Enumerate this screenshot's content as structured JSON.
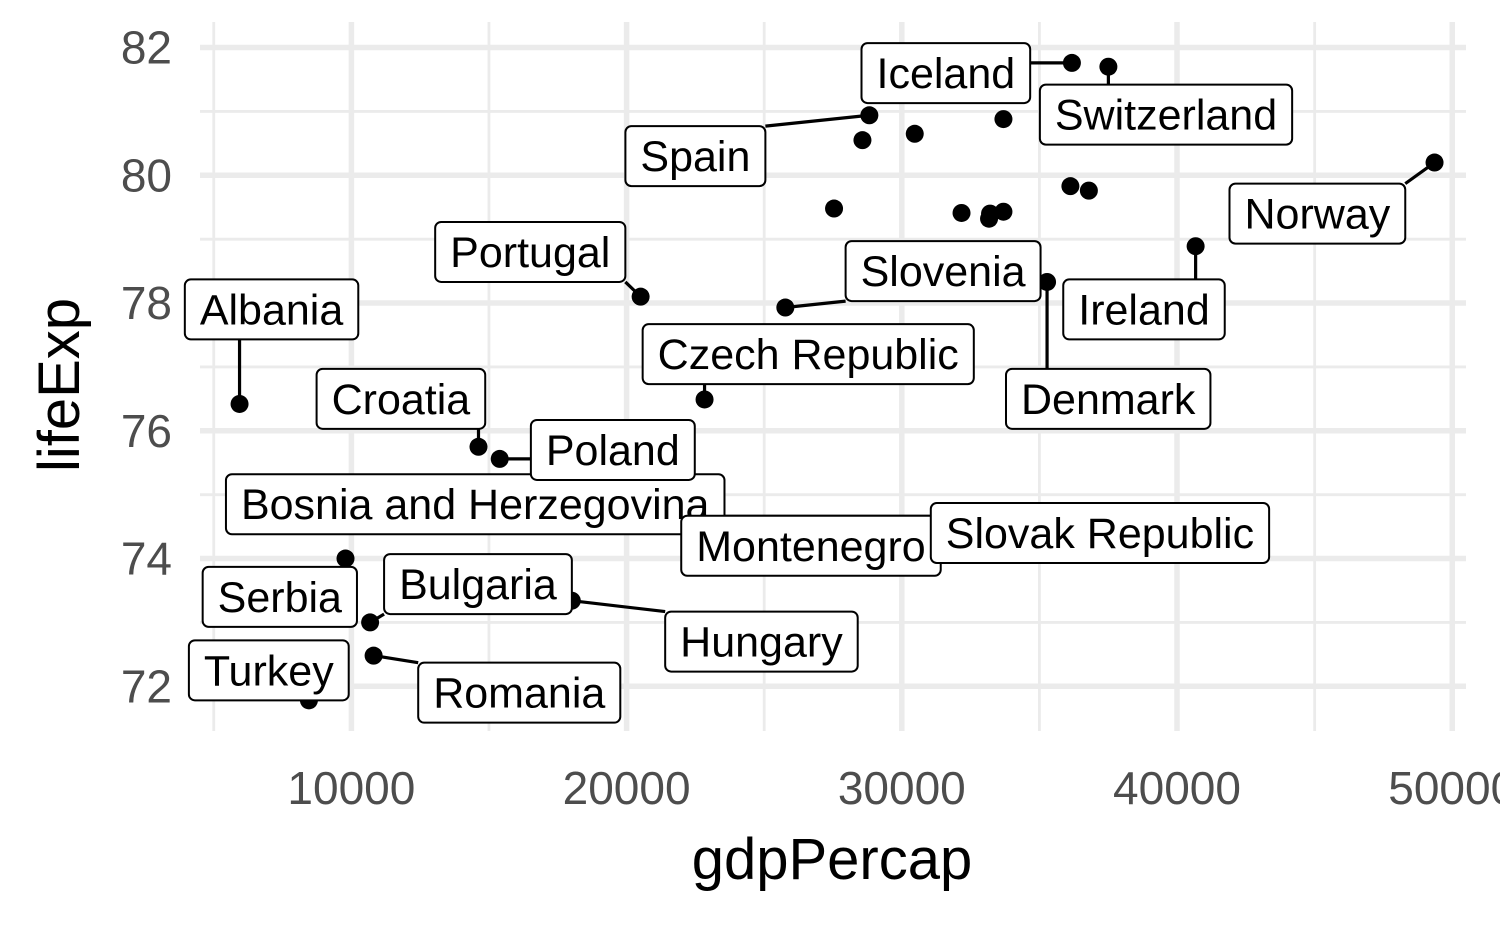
{
  "chart_data": {
    "type": "scatter",
    "xlabel": "gdpPercap",
    "ylabel": "lifeExp",
    "xlim": [
      4500,
      50500
    ],
    "ylim": [
      71.3,
      82.4
    ],
    "x_ticks": [
      10000,
      20000,
      30000,
      40000,
      50000
    ],
    "x_tick_labels": [
      "10000",
      "20000",
      "30000",
      "40000",
      "50000"
    ],
    "y_ticks": [
      72,
      74,
      76,
      78,
      80,
      82
    ],
    "y_tick_labels": [
      "72",
      "74",
      "76",
      "78",
      "80",
      "82"
    ],
    "grid": true,
    "legend": false,
    "colors": {
      "point": "#000000",
      "grid": "#ebebeb",
      "tick_text": "#4d4d4d"
    },
    "points": [
      {
        "label": "Albania",
        "x": 5937,
        "y": 76.42,
        "tag": {
          "x": 7100,
          "y": 77.9
        }
      },
      {
        "label": "Bosnia and Herzegovina",
        "x": 7446,
        "y": 74.85,
        "tag": {
          "x": 14500,
          "y": 74.85
        }
      },
      {
        "label": "Bulgaria",
        "x": 10681,
        "y": 73.0,
        "tag": {
          "x": 14600,
          "y": 73.6
        }
      },
      {
        "label": "Croatia",
        "x": 14619,
        "y": 75.75,
        "tag": {
          "x": 11800,
          "y": 76.5
        }
      },
      {
        "label": "Czech Republic",
        "x": 22833,
        "y": 76.49,
        "tag": {
          "x": 26600,
          "y": 77.2
        }
      },
      {
        "label": "Denmark",
        "x": 35278,
        "y": 78.33,
        "tag": {
          "x": 37500,
          "y": 76.5
        }
      },
      {
        "label": "Hungary",
        "x": 18009,
        "y": 73.34,
        "tag": {
          "x": 24900,
          "y": 72.7
        }
      },
      {
        "label": "Iceland",
        "x": 36181,
        "y": 81.76,
        "tag": {
          "x": 31600,
          "y": 81.6
        }
      },
      {
        "label": "Ireland",
        "x": 40676,
        "y": 78.89,
        "tag": {
          "x": 38800,
          "y": 77.9
        }
      },
      {
        "label": "Montenegro",
        "x": 9254,
        "y": 74.54,
        "tag": {
          "x": 26700,
          "y": 74.2
        }
      },
      {
        "label": "Norway",
        "x": 49357,
        "y": 80.2,
        "tag": {
          "x": 45100,
          "y": 79.4
        }
      },
      {
        "label": "Poland",
        "x": 15390,
        "y": 75.56,
        "tag": {
          "x": 19500,
          "y": 75.7
        }
      },
      {
        "label": "Portugal",
        "x": 20510,
        "y": 78.1,
        "tag": {
          "x": 16500,
          "y": 78.8
        }
      },
      {
        "label": "Romania",
        "x": 10808,
        "y": 72.48,
        "tag": {
          "x": 16100,
          "y": 71.9
        }
      },
      {
        "label": "Serbia",
        "x": 9787,
        "y": 74.0,
        "tag": {
          "x": 7400,
          "y": 73.4
        }
      },
      {
        "label": "Slovak Republic",
        "x": 18678,
        "y": 74.66,
        "tag": {
          "x": 37200,
          "y": 74.4
        }
      },
      {
        "label": "Slovenia",
        "x": 25768,
        "y": 77.93,
        "tag": {
          "x": 31500,
          "y": 78.5
        }
      },
      {
        "label": "Spain",
        "x": 28821,
        "y": 80.94,
        "tag": {
          "x": 22500,
          "y": 80.3
        }
      },
      {
        "label": "Switzerland",
        "x": 37506,
        "y": 81.7,
        "tag": {
          "x": 39600,
          "y": 80.95
        }
      },
      {
        "label": "Turkey",
        "x": 8458,
        "y": 71.78,
        "tag": {
          "x": 7000,
          "y": 72.25
        }
      },
      {
        "label": "",
        "x": 33693,
        "y": 80.88
      },
      {
        "label": "",
        "x": 30470,
        "y": 80.65
      },
      {
        "label": "",
        "x": 28570,
        "y": 80.55
      },
      {
        "label": "",
        "x": 36126,
        "y": 79.83
      },
      {
        "label": "",
        "x": 36797,
        "y": 79.76
      },
      {
        "label": "",
        "x": 27538,
        "y": 79.48
      },
      {
        "label": "",
        "x": 32170,
        "y": 79.41
      },
      {
        "label": "",
        "x": 33207,
        "y": 79.4
      },
      {
        "label": "",
        "x": 33693,
        "y": 79.43
      },
      {
        "label": "",
        "x": 33170,
        "y": 79.32
      }
    ]
  }
}
